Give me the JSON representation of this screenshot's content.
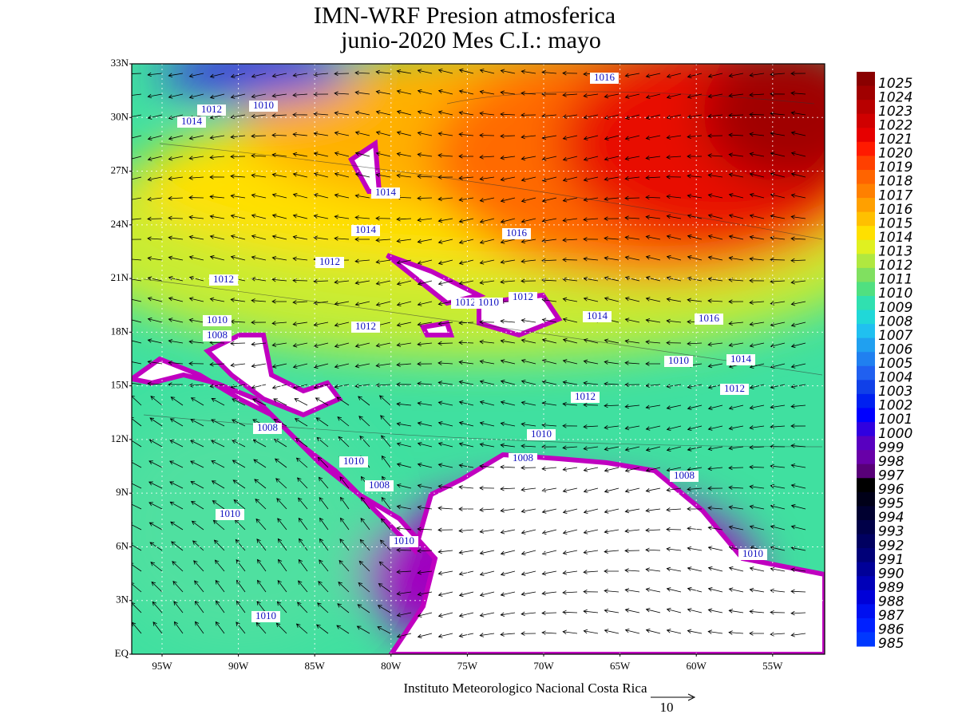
{
  "title": "IMN-WRF  Presion atmosferica",
  "subtitle": "junio-2020 Mes C.I.: mayo",
  "lat_ticks": [
    "EQ",
    "3N",
    "6N",
    "9N",
    "12N",
    "15N",
    "18N",
    "21N",
    "24N",
    "27N",
    "30N",
    "33N"
  ],
  "lon_ticks": [
    "95W",
    "90W",
    "85W",
    "80W",
    "75W",
    "70W",
    "65W",
    "60W",
    "55W"
  ],
  "contour_labels": [
    "1016",
    "1012",
    "1010",
    "1014",
    "1014",
    "1014",
    "1016",
    "1012",
    "1012",
    "1012",
    "1010",
    "1012",
    "1010",
    "1008",
    "1012",
    "1014",
    "1016",
    "1010",
    "1014",
    "1012",
    "1012",
    "1008",
    "1010",
    "1008",
    "1010",
    "1008",
    "1008",
    "1010",
    "1010",
    "1010",
    "1010"
  ],
  "colorbar": {
    "levels": [
      1025,
      1024,
      1023,
      1022,
      1021,
      1020,
      1019,
      1018,
      1017,
      1016,
      1015,
      1014,
      1013,
      1012,
      1011,
      1010,
      1009,
      1008,
      1007,
      1006,
      1005,
      1004,
      1003,
      1002,
      1001,
      1000,
      999,
      998,
      997,
      996,
      995,
      994,
      993,
      992,
      991,
      990,
      989,
      988,
      987,
      986,
      985
    ],
    "colors": [
      "#8a0000",
      "#a00000",
      "#b80000",
      "#d00000",
      "#e60000",
      "#ff1a00",
      "#ff4000",
      "#ff6400",
      "#ff8000",
      "#ffa000",
      "#ffc000",
      "#ffe000",
      "#e0f020",
      "#b0e840",
      "#80e060",
      "#50e080",
      "#30e0b0",
      "#20d8d8",
      "#20c0f0",
      "#20a0f0",
      "#2080f0",
      "#2060f0",
      "#1040e8",
      "#0020f0",
      "#0000ff",
      "#3000e0",
      "#5800c0",
      "#6800a8",
      "#580078",
      "#000000",
      "#000018",
      "#000030",
      "#000048",
      "#000060",
      "#000078",
      "#000098",
      "#0000b8",
      "#0000d8",
      "#0010f0",
      "#0020ff",
      "#0038ff"
    ]
  },
  "credit": "Instituto Meteorologico Nacional Costa Rica",
  "vector_scale": "10"
}
